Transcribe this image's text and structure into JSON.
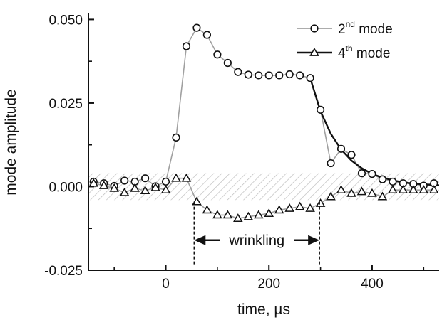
{
  "chart_data": {
    "type": "scatter",
    "title": "",
    "xlabel": "time, µs",
    "ylabel": "mode amplitude",
    "xlim": [
      -150,
      530
    ],
    "ylim": [
      -0.025,
      0.052
    ],
    "x_ticks": [
      0,
      200,
      400
    ],
    "x_tick_labels": [
      "0",
      "200",
      "400"
    ],
    "y_ticks": [
      -0.025,
      0.0,
      0.025,
      0.05
    ],
    "y_tick_labels": [
      "-0.025",
      "0.000",
      "0.025",
      "0.050"
    ],
    "grid": false,
    "legend": {
      "position": "top-right"
    },
    "noise_band": {
      "ymin": -0.004,
      "ymax": 0.004,
      "pattern": "diagonal-hatch"
    },
    "annotation": {
      "text": "wrinkling",
      "x_start": 55,
      "x_end": 298,
      "y": -0.016
    },
    "series": [
      {
        "name_base": "2",
        "name_sup": "nd",
        "name_rest": " mode",
        "marker": "circle",
        "line_color": "#a0a0a0",
        "x": [
          -140,
          -120,
          -100,
          -80,
          -60,
          -40,
          -20,
          0,
          20,
          40,
          60,
          80,
          100,
          120,
          140,
          160,
          180,
          200,
          220,
          240,
          260,
          280,
          300,
          320,
          340,
          360,
          380,
          400,
          420,
          440,
          460,
          480,
          500,
          520
        ],
        "values": [
          0.0015,
          0.001,
          0.0002,
          0.0018,
          0.0015,
          0.0025,
          0.0001,
          0.0015,
          0.0147,
          0.042,
          0.0475,
          0.0454,
          0.0395,
          0.037,
          0.0343,
          0.0335,
          0.0333,
          0.0333,
          0.0333,
          0.0336,
          0.0333,
          0.0325,
          0.023,
          0.007,
          0.0113,
          0.0095,
          0.004,
          0.0038,
          0.0022,
          0.0015,
          0.001,
          0.0008,
          0.0003,
          0.001
        ]
      },
      {
        "name_base": "4",
        "name_sup": "th",
        "name_rest": " mode",
        "marker": "triangle",
        "line_color": "#a0a0a0",
        "x": [
          -140,
          -120,
          -100,
          -80,
          -60,
          -40,
          -20,
          0,
          20,
          40,
          60,
          80,
          100,
          120,
          140,
          160,
          180,
          200,
          220,
          240,
          260,
          280,
          300,
          320,
          340,
          360,
          380,
          400,
          420,
          440,
          460,
          480,
          500,
          520
        ],
        "values": [
          0.001,
          0.0003,
          -0.0005,
          -0.0018,
          -0.0005,
          -0.0012,
          -0.0003,
          -0.001,
          0.0025,
          0.0025,
          -0.0045,
          -0.007,
          -0.0085,
          -0.0085,
          -0.0095,
          -0.009,
          -0.0085,
          -0.008,
          -0.007,
          -0.0065,
          -0.006,
          -0.0065,
          -0.005,
          -0.003,
          -0.001,
          -0.002,
          -0.0015,
          -0.002,
          -0.003,
          -0.001,
          -0.001,
          -0.001,
          -0.001,
          -0.001
        ]
      }
    ],
    "fit_curve": {
      "color": "#111111",
      "x": [
        280,
        300,
        320,
        340,
        360,
        380,
        400,
        420,
        440,
        460,
        480,
        500,
        520,
        530
      ],
      "values": [
        0.0325,
        0.0225,
        0.0158,
        0.0111,
        0.0078,
        0.0055,
        0.0038,
        0.0027,
        0.0019,
        0.0013,
        0.0009,
        0.0007,
        0.0005,
        0.0004
      ]
    }
  }
}
